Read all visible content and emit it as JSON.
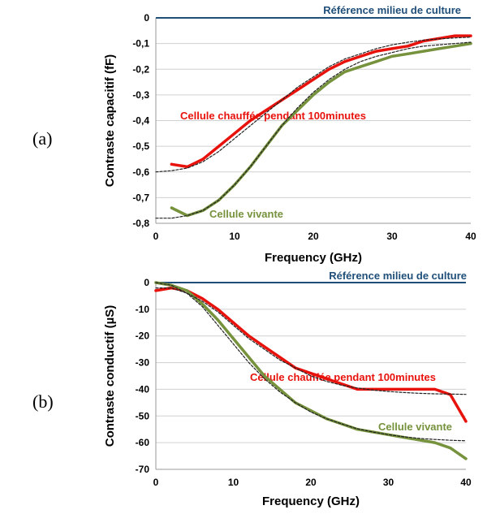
{
  "colors": {
    "red": "#e8120c",
    "green": "#76923c",
    "reference": "#1f4e79",
    "fit": "#222222",
    "grid": "#d0d0d0"
  },
  "chart_data": [
    {
      "panel": "(a)",
      "type": "line",
      "xlabel": "Frequency (GHz)",
      "ylabel": "Contraste capacitif (fF)",
      "xlim": [
        0,
        40
      ],
      "ylim": [
        -0.8,
        0
      ],
      "xticks": [
        0,
        10,
        20,
        30,
        40
      ],
      "xtick_labels": [
        "0",
        "10",
        "20",
        "30",
        "40"
      ],
      "yticks": [
        0,
        -0.1,
        -0.2,
        -0.3,
        -0.4,
        -0.5,
        -0.6,
        -0.7,
        -0.8
      ],
      "ytick_labels": [
        "0",
        "-0,1",
        "-0,2",
        "-0,3",
        "-0,4",
        "-0,5",
        "-0,6",
        "-0,7",
        "-0,8"
      ],
      "grid": true,
      "reference_line": {
        "y": 0,
        "label": "Référence milieu de culture"
      },
      "series": [
        {
          "name": "Cellule chauffée pendant 100minutes",
          "color_key": "red",
          "x": [
            2,
            4,
            6,
            8,
            10,
            12,
            14,
            16,
            18,
            20,
            22,
            24,
            26,
            28,
            30,
            32,
            34,
            36,
            38,
            40
          ],
          "y": [
            -0.57,
            -0.58,
            -0.55,
            -0.5,
            -0.45,
            -0.4,
            -0.36,
            -0.32,
            -0.28,
            -0.24,
            -0.2,
            -0.17,
            -0.15,
            -0.13,
            -0.12,
            -0.11,
            -0.09,
            -0.08,
            -0.07,
            -0.07
          ]
        },
        {
          "name": "Cellule vivante",
          "color_key": "green",
          "x": [
            2,
            4,
            6,
            8,
            10,
            12,
            14,
            16,
            18,
            20,
            22,
            24,
            26,
            28,
            30,
            32,
            34,
            36,
            38,
            40
          ],
          "y": [
            -0.74,
            -0.77,
            -0.75,
            -0.71,
            -0.65,
            -0.58,
            -0.5,
            -0.42,
            -0.36,
            -0.3,
            -0.25,
            -0.21,
            -0.19,
            -0.17,
            -0.15,
            -0.14,
            -0.13,
            -0.12,
            -0.11,
            -0.1
          ]
        },
        {
          "name": "",
          "style": "dotted-fit",
          "color_key": "fit",
          "x": [
            0,
            2,
            4,
            6,
            8,
            10,
            12,
            14,
            16,
            18,
            20,
            22,
            24,
            26,
            28,
            30,
            32,
            34,
            36,
            38,
            40
          ],
          "y": [
            -0.6,
            -0.595,
            -0.585,
            -0.56,
            -0.52,
            -0.47,
            -0.42,
            -0.37,
            -0.32,
            -0.27,
            -0.23,
            -0.19,
            -0.16,
            -0.14,
            -0.12,
            -0.105,
            -0.095,
            -0.087,
            -0.082,
            -0.078,
            -0.075
          ]
        },
        {
          "name": "",
          "style": "dotted-fit",
          "color_key": "fit",
          "x": [
            0,
            2,
            4,
            6,
            8,
            10,
            12,
            14,
            16,
            18,
            20,
            22,
            24,
            26,
            28,
            30,
            32,
            34,
            36,
            38,
            40
          ],
          "y": [
            -0.78,
            -0.78,
            -0.77,
            -0.75,
            -0.71,
            -0.65,
            -0.58,
            -0.5,
            -0.42,
            -0.35,
            -0.29,
            -0.24,
            -0.2,
            -0.17,
            -0.15,
            -0.135,
            -0.12,
            -0.11,
            -0.105,
            -0.1,
            -0.095
          ]
        }
      ]
    },
    {
      "panel": "(b)",
      "type": "line",
      "xlabel": "Frequency (GHz)",
      "ylabel": "Contraste conductif (µS)",
      "xlim": [
        0,
        40
      ],
      "ylim": [
        -70,
        0
      ],
      "xticks": [
        0,
        10,
        20,
        30,
        40
      ],
      "xtick_labels": [
        "0",
        "10",
        "20",
        "30",
        "40"
      ],
      "yticks": [
        0,
        -10,
        -20,
        -30,
        -40,
        -50,
        -60,
        -70
      ],
      "ytick_labels": [
        "0",
        "-10",
        "-20",
        "-30",
        "-40",
        "-50",
        "-60",
        "-70"
      ],
      "grid": true,
      "reference_line": {
        "y": 0,
        "label": "Référence milieu de culture"
      },
      "series": [
        {
          "name": "Cellule chauffée pendant 100minutes",
          "color_key": "red",
          "x": [
            0,
            2,
            4,
            6,
            8,
            10,
            12,
            14,
            16,
            18,
            20,
            22,
            24,
            26,
            28,
            30,
            32,
            34,
            36,
            38,
            40
          ],
          "y": [
            -3,
            -2,
            -3,
            -6,
            -10,
            -15,
            -20,
            -24,
            -28,
            -32,
            -34,
            -36,
            -38,
            -40,
            -40,
            -40,
            -40,
            -40,
            -40,
            -42,
            -52
          ]
        },
        {
          "name": "Cellule vivante",
          "color_key": "green",
          "x": [
            0,
            2,
            4,
            6,
            8,
            10,
            12,
            14,
            16,
            18,
            20,
            22,
            24,
            26,
            28,
            30,
            32,
            34,
            36,
            38,
            40
          ],
          "y": [
            0,
            -1,
            -3,
            -8,
            -14,
            -21,
            -28,
            -35,
            -40,
            -45,
            -48,
            -51,
            -53,
            -55,
            -56,
            -57,
            -58,
            -59,
            -60,
            -62,
            -66
          ]
        },
        {
          "name": "",
          "style": "dotted-fit",
          "color_key": "fit",
          "x": [
            0,
            2,
            4,
            6,
            8,
            10,
            12,
            14,
            16,
            18,
            20,
            22,
            24,
            26,
            28,
            30,
            32,
            34,
            36,
            38,
            40
          ],
          "y": [
            -2,
            -2,
            -4,
            -7,
            -11,
            -16,
            -21,
            -25,
            -29,
            -32,
            -35,
            -37,
            -38.5,
            -39.5,
            -40.3,
            -40.8,
            -41.2,
            -41.5,
            -41.7,
            -41.8,
            -41.9
          ]
        },
        {
          "name": "",
          "style": "dotted-fit",
          "color_key": "fit",
          "x": [
            0,
            2,
            4,
            6,
            8,
            10,
            12,
            14,
            16,
            18,
            20,
            22,
            24,
            26,
            28,
            30,
            32,
            34,
            36,
            38,
            40
          ],
          "y": [
            0,
            -1,
            -4,
            -9,
            -16,
            -23,
            -30,
            -36,
            -41,
            -45,
            -48.5,
            -51,
            -53,
            -54.8,
            -56,
            -57,
            -57.8,
            -58.4,
            -58.8,
            -59.1,
            -59.3
          ]
        }
      ]
    }
  ]
}
